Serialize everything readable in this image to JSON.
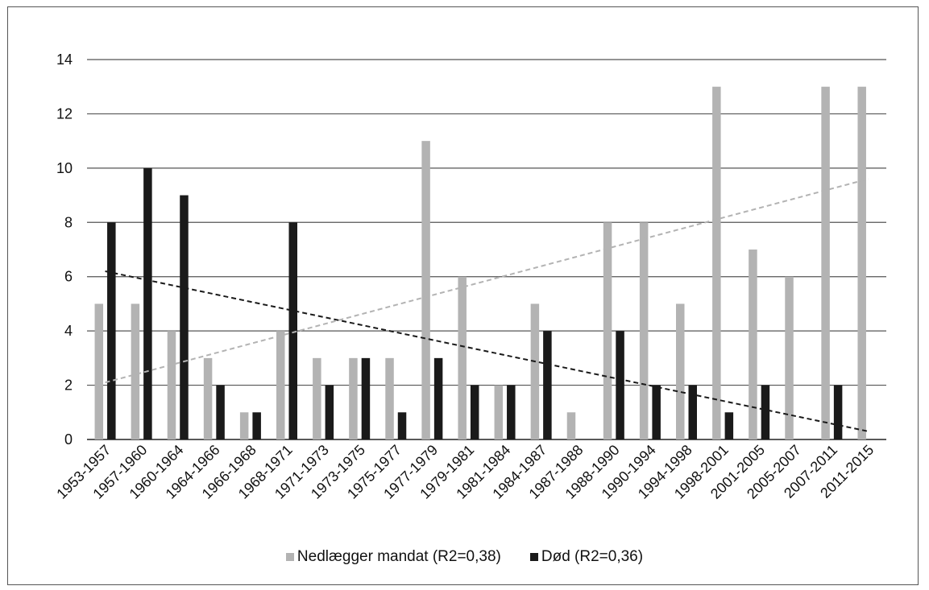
{
  "chart_data": {
    "type": "bar",
    "categories": [
      "1953-1957",
      "1957-1960",
      "1960-1964",
      "1964-1966",
      "1966-1968",
      "1968-1971",
      "1971-1973",
      "1973-1975",
      "1975-1977",
      "1977-1979",
      "1979-1981",
      "1981-1984",
      "1984-1987",
      "1987-1988",
      "1988-1990",
      "1990-1994",
      "1994-1998",
      "1998-2001",
      "2001-2005",
      "2005-2007",
      "2007-2011",
      "2011-2015"
    ],
    "series": [
      {
        "name": "Nedlægger mandat (R2=0,38)",
        "color": "#b3b3b3",
        "values": [
          5,
          5,
          4,
          3,
          1,
          4,
          3,
          3,
          3,
          11,
          6,
          2,
          5,
          1,
          8,
          8,
          5,
          13,
          7,
          6,
          13,
          13
        ],
        "trendline": {
          "start": 2.1,
          "end": 9.6,
          "style": "dashed"
        }
      },
      {
        "name": "Død (R2=0,36)",
        "color": "#1a1a1a",
        "values": [
          8,
          10,
          9,
          2,
          1,
          8,
          2,
          3,
          1,
          3,
          2,
          2,
          4,
          0,
          4,
          2,
          2,
          1,
          2,
          0,
          2,
          0
        ],
        "trendline": {
          "start": 6.2,
          "end": 0.3,
          "style": "dashed"
        }
      }
    ],
    "ylim": [
      0,
      14
    ],
    "yticks": [
      0,
      2,
      4,
      6,
      8,
      10,
      12,
      14
    ],
    "grid": true,
    "legend_position": "bottom",
    "title": "",
    "xlabel": "",
    "ylabel": ""
  }
}
